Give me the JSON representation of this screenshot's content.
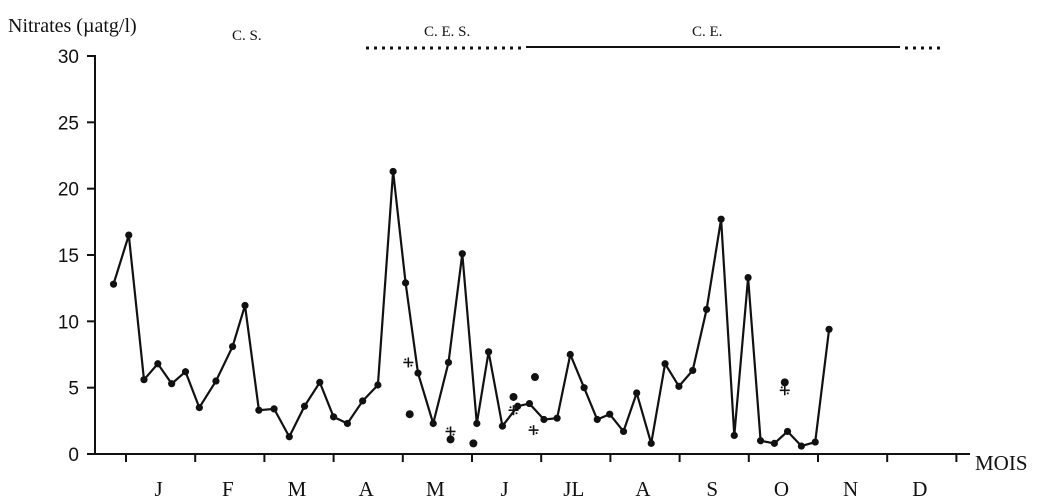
{
  "chart_data": {
    "type": "line",
    "ylabel": "Nitrates (µatg/l)",
    "xlabel": "MOIS",
    "ylim": [
      0,
      30
    ],
    "yticks": [
      0,
      5,
      10,
      15,
      20,
      25,
      30
    ],
    "months": [
      "J",
      "F",
      "M",
      "A",
      "M",
      "J",
      "JL",
      "A",
      "S",
      "O",
      "N",
      "D"
    ],
    "x_unit": "month index (0 = start of J)",
    "xlim": [
      0,
      12
    ],
    "series": [
      {
        "values": [
          [
            0.08,
            12.8
          ],
          [
            0.3,
            16.5
          ],
          [
            0.52,
            5.6
          ],
          [
            0.72,
            6.8
          ],
          [
            0.92,
            5.3
          ],
          [
            1.12,
            6.2
          ],
          [
            1.32,
            3.5
          ],
          [
            1.56,
            5.5
          ],
          [
            1.8,
            8.1
          ],
          [
            1.98,
            11.2
          ],
          [
            2.18,
            3.3
          ],
          [
            2.4,
            3.4
          ],
          [
            2.62,
            1.3
          ],
          [
            2.84,
            3.6
          ],
          [
            3.06,
            5.4
          ],
          [
            3.26,
            2.8
          ],
          [
            3.46,
            2.3
          ],
          [
            3.68,
            4.0
          ],
          [
            3.9,
            5.2
          ],
          [
            4.12,
            21.3
          ],
          [
            4.3,
            12.9
          ],
          [
            4.48,
            6.1
          ],
          [
            4.7,
            2.3
          ],
          [
            4.92,
            6.9
          ],
          [
            5.12,
            15.1
          ],
          [
            5.33,
            2.3
          ],
          [
            5.5,
            7.7
          ],
          [
            5.7,
            2.1
          ],
          [
            5.92,
            3.6
          ],
          [
            6.09,
            3.8
          ],
          [
            6.3,
            2.6
          ],
          [
            6.49,
            2.7
          ],
          [
            6.68,
            7.5
          ],
          [
            6.88,
            5.0
          ],
          [
            7.07,
            2.6
          ],
          [
            7.25,
            3.0
          ],
          [
            7.45,
            1.7
          ],
          [
            7.64,
            4.6
          ],
          [
            7.85,
            0.8
          ],
          [
            8.05,
            6.8
          ],
          [
            8.25,
            5.1
          ],
          [
            8.45,
            6.3
          ],
          [
            8.65,
            10.9
          ],
          [
            8.86,
            17.7
          ],
          [
            9.05,
            1.4
          ],
          [
            9.25,
            13.3
          ],
          [
            9.43,
            1.0
          ],
          [
            9.63,
            0.8
          ],
          [
            9.82,
            1.7
          ],
          [
            10.02,
            0.6
          ],
          [
            10.22,
            0.9
          ],
          [
            10.42,
            9.4
          ]
        ]
      }
    ],
    "isolated_dots": [
      [
        4.36,
        3.0
      ],
      [
        4.95,
        1.1
      ],
      [
        5.28,
        0.8
      ],
      [
        5.86,
        4.3
      ],
      [
        6.17,
        5.8
      ],
      [
        9.78,
        5.4
      ]
    ],
    "cross_marks": [
      [
        4.34,
        6.9
      ],
      [
        4.95,
        1.7
      ],
      [
        5.86,
        3.3
      ],
      [
        6.15,
        1.8
      ],
      [
        9.78,
        4.8
      ]
    ],
    "period_bars": [
      {
        "label": "C. S.",
        "style": "none"
      },
      {
        "label": "C. E. S.",
        "style": "dotted"
      },
      {
        "label": "C. E.",
        "style": "solid"
      },
      {
        "label": "",
        "style": "dotted"
      }
    ],
    "grid": false,
    "legend": "none"
  }
}
